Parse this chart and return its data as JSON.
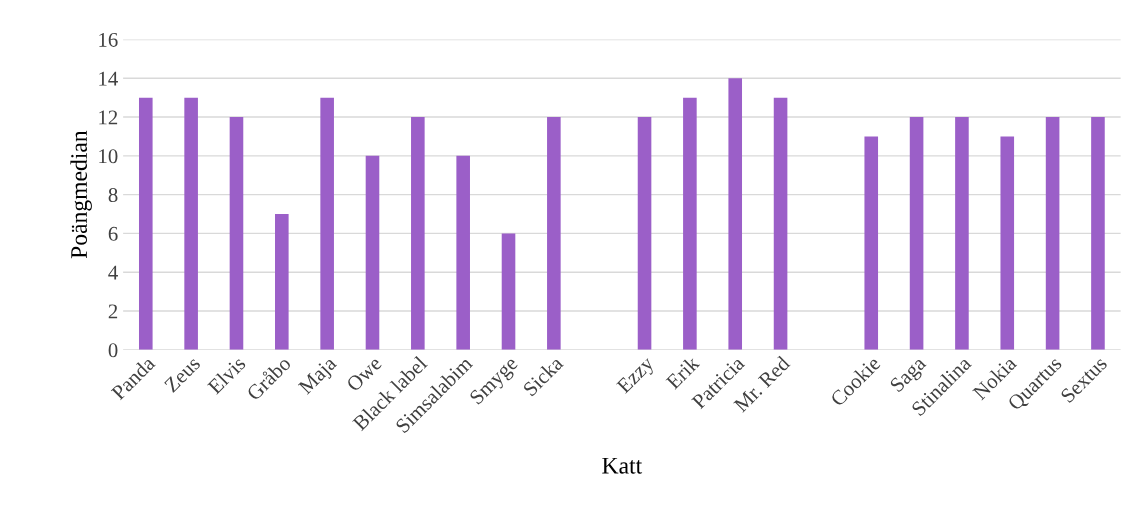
{
  "chart_data": {
    "type": "bar",
    "xlabel": "Katt",
    "ylabel": "Poängmedian",
    "categories": [
      "Panda",
      "Zeus",
      "Elvis",
      "Gråbo",
      "Maja",
      "Owe",
      "Black label",
      "Simsalabim",
      "Smyge",
      "Sicka",
      null,
      "Ezzy",
      "Erik",
      "Patricia",
      "Mr. Red",
      null,
      "Cookie",
      "Saga",
      "Stinalina",
      "Nokia",
      "Quartus",
      "Sextus"
    ],
    "values": [
      13,
      13,
      12,
      7,
      13,
      10,
      12,
      10,
      6,
      12,
      null,
      12,
      13,
      14,
      13,
      null,
      11,
      12,
      12,
      11,
      12,
      12
    ],
    "color": "#9b5fc8",
    "ylim": [
      0,
      16
    ],
    "yticks": [
      0,
      2,
      4,
      6,
      8,
      10,
      12,
      14,
      16
    ],
    "grid": "y",
    "legend": false
  }
}
